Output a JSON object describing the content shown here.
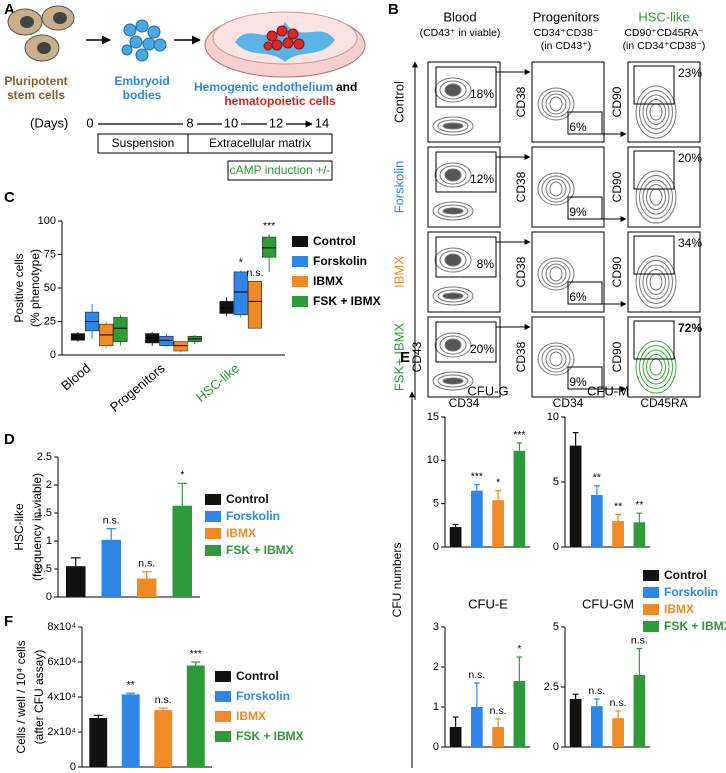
{
  "panel_a": {
    "label": "A",
    "cells": [
      "Pluripotent",
      "stem cells"
    ],
    "bodies": [
      "Embryoid",
      "bodies"
    ],
    "dish": [
      "Hemogenic endothelium",
      "and",
      "hematopoietic cells"
    ],
    "days_label": "(Days)",
    "days": [
      0,
      8,
      10,
      12,
      14
    ],
    "stages": [
      "Suspension",
      "Extracellular matrix"
    ],
    "treatment": "cAMP induction +/-"
  },
  "panel_b": {
    "label": "B",
    "columns": [
      {
        "title": "Blood",
        "subtitle": [
          "(CD43⁺ in viable)"
        ],
        "x_axis": "CD34",
        "y_axis": "CD43",
        "color": "#000000"
      },
      {
        "title": "Progenitors",
        "subtitle": [
          "CD34⁺CD38⁻",
          "(in CD43⁺)"
        ],
        "x_axis": "CD34",
        "y_axis": "CD38",
        "color": "#000000"
      },
      {
        "title": "HSC-like",
        "subtitle": [
          "CD90⁺CD45RA⁻",
          "(in CD34⁺CD38⁻)"
        ],
        "x_axis": "CD45RA",
        "y_axis": "CD90",
        "color": "#2e9a3a"
      }
    ],
    "rows": [
      {
        "name": "Control",
        "color": "#111111"
      },
      {
        "name": "Forskolin",
        "color": "#2e86e8"
      },
      {
        "name": "IBMX",
        "color": "#f08a24"
      },
      {
        "name": "FSK+ IBMX",
        "color": "#2e9a3a"
      }
    ],
    "percentages": [
      [
        "18%",
        "6%",
        "23%"
      ],
      [
        "12%",
        "9%",
        "20%"
      ],
      [
        "8%",
        "6%",
        "34%"
      ],
      [
        "20%",
        "9%",
        "72%"
      ]
    ]
  },
  "panel_e": {
    "label": "E",
    "ylabel": "CFU numbers"
  },
  "chart_data": [
    {
      "type": "box",
      "panel": "C",
      "ylabel": [
        "Positive cells",
        "(% phenotype)"
      ],
      "categories": [
        "Blood",
        "Progenitors",
        "HSC-like"
      ],
      "category_colors": [
        "#000000",
        "#000000",
        "#2e9a3a"
      ],
      "ylim": [
        0,
        100
      ],
      "yticks": [
        0,
        25,
        50,
        75,
        100
      ],
      "legend": "right",
      "legend_text_colored": false,
      "series": [
        {
          "name": "Control",
          "color": "#111111",
          "min": [
            10,
            7,
            29
          ],
          "q1": [
            11,
            9,
            31
          ],
          "median": [
            13,
            13,
            35
          ],
          "q3": [
            16,
            16,
            40
          ],
          "max": [
            17,
            17,
            43
          ],
          "significance": [
            null,
            null,
            null
          ]
        },
        {
          "name": "Forskolin",
          "color": "#2e86e8",
          "min": [
            12,
            6,
            28
          ],
          "q1": [
            18,
            7,
            30
          ],
          "median": [
            25,
            11,
            47
          ],
          "q3": [
            32,
            14,
            62
          ],
          "max": [
            38,
            16,
            63
          ],
          "significance": [
            null,
            null,
            "*"
          ]
        },
        {
          "name": "IBMX",
          "color": "#f08a24",
          "min": [
            5,
            2,
            20
          ],
          "q1": [
            7,
            3,
            20
          ],
          "median": [
            15,
            7,
            40
          ],
          "q3": [
            23,
            10,
            55
          ],
          "max": [
            25,
            10,
            55
          ],
          "significance": [
            null,
            null,
            "n.s."
          ]
        },
        {
          "name": "FSK + IBMX",
          "color": "#2e9a3a",
          "min": [
            7,
            8,
            62
          ],
          "q1": [
            10,
            10,
            73
          ],
          "median": [
            20,
            12,
            80
          ],
          "q3": [
            28,
            14,
            88
          ],
          "max": [
            30,
            15,
            90
          ],
          "significance": [
            null,
            null,
            "***"
          ]
        }
      ]
    },
    {
      "type": "bar",
      "panel": "D",
      "ylabel": [
        "HSC-like",
        "(frequency in viable)"
      ],
      "categories": [
        null
      ],
      "ylim": [
        0,
        2.5
      ],
      "yticks": [
        0,
        0.5,
        1,
        1.5,
        2,
        2.5
      ],
      "legend": "right",
      "legend_text_colored": true,
      "series": [
        {
          "name": "Control",
          "color": "#111111",
          "values": [
            0.55
          ],
          "errors": [
            0.15
          ],
          "significance": [
            null
          ]
        },
        {
          "name": "Forskolin",
          "color": "#2e86e8",
          "values": [
            1.02
          ],
          "errors": [
            0.2
          ],
          "significance": [
            "n.s."
          ]
        },
        {
          "name": "IBMX",
          "color": "#f08a24",
          "values": [
            0.33
          ],
          "errors": [
            0.12
          ],
          "significance": [
            "n.s."
          ]
        },
        {
          "name": "FSK + IBMX",
          "color": "#2e9a3a",
          "values": [
            1.63
          ],
          "errors": [
            0.4
          ],
          "significance": [
            "*"
          ]
        }
      ]
    },
    {
      "type": "bar",
      "title": "CFU-G",
      "categories": [
        null
      ],
      "ylim": [
        0,
        15
      ],
      "yticks": [
        0,
        5,
        10,
        15
      ],
      "series": [
        {
          "name": "Control",
          "color": "#111111",
          "values": [
            2.3
          ],
          "errors": [
            0.3
          ],
          "significance": [
            null
          ]
        },
        {
          "name": "Forskolin",
          "color": "#2e86e8",
          "values": [
            6.5
          ],
          "errors": [
            0.7
          ],
          "significance": [
            "***"
          ]
        },
        {
          "name": "IBMX",
          "color": "#f08a24",
          "values": [
            5.4
          ],
          "errors": [
            1.1
          ],
          "significance": [
            "*"
          ]
        },
        {
          "name": "FSK + IBMX",
          "color": "#2e9a3a",
          "values": [
            11.1
          ],
          "errors": [
            0.9
          ],
          "significance": [
            "***"
          ]
        }
      ]
    },
    {
      "type": "bar",
      "title": "CFU-M",
      "categories": [
        null
      ],
      "ylim": [
        0,
        10
      ],
      "yticks": [
        0,
        5,
        10
      ],
      "legend": "below",
      "legend_text_colored": true,
      "series": [
        {
          "name": "Control",
          "color": "#111111",
          "values": [
            7.8
          ],
          "errors": [
            1.0
          ],
          "significance": [
            null
          ]
        },
        {
          "name": "Forskolin",
          "color": "#2e86e8",
          "values": [
            4.0
          ],
          "errors": [
            0.7
          ],
          "significance": [
            "**"
          ]
        },
        {
          "name": "IBMX",
          "color": "#f08a24",
          "values": [
            2.0
          ],
          "errors": [
            0.5
          ],
          "significance": [
            "**"
          ]
        },
        {
          "name": "FSK + IBMX",
          "color": "#2e9a3a",
          "values": [
            1.9
          ],
          "errors": [
            0.7
          ],
          "significance": [
            "**"
          ]
        }
      ]
    },
    {
      "type": "bar",
      "title": "CFU-E",
      "categories": [
        null
      ],
      "ylim": [
        0,
        3
      ],
      "yticks": [
        0,
        1,
        2,
        3
      ],
      "series": [
        {
          "name": "Control",
          "color": "#111111",
          "values": [
            0.5
          ],
          "errors": [
            0.25
          ],
          "significance": [
            null
          ]
        },
        {
          "name": "Forskolin",
          "color": "#2e86e8",
          "values": [
            1.0
          ],
          "errors": [
            0.6
          ],
          "significance": [
            "n.s."
          ]
        },
        {
          "name": "IBMX",
          "color": "#f08a24",
          "values": [
            0.5
          ],
          "errors": [
            0.2
          ],
          "significance": [
            "n.s."
          ]
        },
        {
          "name": "FSK + IBMX",
          "color": "#2e9a3a",
          "values": [
            1.65
          ],
          "errors": [
            0.6
          ],
          "significance": [
            "*"
          ]
        }
      ]
    },
    {
      "type": "bar",
      "title": "CFU-GM",
      "categories": [
        null
      ],
      "ylim": [
        0,
        5
      ],
      "yticks": [
        0,
        2.5,
        5
      ],
      "series": [
        {
          "name": "Control",
          "color": "#111111",
          "values": [
            2.0
          ],
          "errors": [
            0.2
          ],
          "significance": [
            null
          ]
        },
        {
          "name": "Forskolin",
          "color": "#2e86e8",
          "values": [
            1.7
          ],
          "errors": [
            0.3
          ],
          "significance": [
            "n.s."
          ]
        },
        {
          "name": "IBMX",
          "color": "#f08a24",
          "values": [
            1.2
          ],
          "errors": [
            0.3
          ],
          "significance": [
            "n.s."
          ]
        },
        {
          "name": "FSK + IBMX",
          "color": "#2e9a3a",
          "values": [
            3.0
          ],
          "errors": [
            1.1
          ],
          "significance": [
            "n.s."
          ]
        }
      ]
    },
    {
      "type": "bar",
      "panel": "F",
      "ylabel": [
        "Cells / well / 10⁴ cells",
        "(after CFU assay)"
      ],
      "categories": [
        null
      ],
      "ylim": [
        0,
        80000
      ],
      "yticks": [
        0,
        {
          "value": 20000,
          "label": "2x10⁴"
        },
        {
          "value": 40000,
          "label": "4x10⁴"
        },
        {
          "value": 60000,
          "label": "6x10⁴"
        },
        {
          "value": 80000,
          "label": "8x10⁴"
        }
      ],
      "legend": "right",
      "legend_text_colored": true,
      "series": [
        {
          "name": "Control",
          "color": "#111111",
          "values": [
            28000
          ],
          "errors": [
            1500
          ],
          "significance": [
            null
          ]
        },
        {
          "name": "Forskolin",
          "color": "#2e86e8",
          "values": [
            41500
          ],
          "errors": [
            700
          ],
          "significance": [
            "**"
          ]
        },
        {
          "name": "IBMX",
          "color": "#f08a24",
          "values": [
            32500
          ],
          "errors": [
            1200
          ],
          "significance": [
            "n.s."
          ]
        },
        {
          "name": "FSK + IBMX",
          "color": "#2e9a3a",
          "values": [
            58000
          ],
          "errors": [
            2000
          ],
          "significance": [
            "***"
          ]
        }
      ]
    }
  ]
}
